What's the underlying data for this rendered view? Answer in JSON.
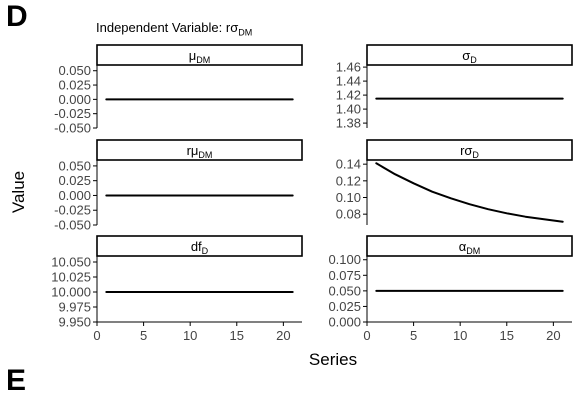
{
  "figure": {
    "panel_label": "D",
    "header": {
      "text": "Independent Variable: rσ",
      "sub": "DM"
    },
    "next_panel_label": "E",
    "ylabel": "Value",
    "xlabel": "Series"
  },
  "chart_data": [
    {
      "type": "line",
      "facet": "μ",
      "facet_sub": "DM",
      "x": [
        1,
        21
      ],
      "y": [
        0.0,
        0.0
      ],
      "ylim": [
        -0.05,
        0.06
      ],
      "yticks": [
        "0.050",
        "0.025",
        "0.000",
        "-0.025",
        "-0.050"
      ],
      "ytick_values": [
        0.05,
        0.025,
        0.0,
        -0.025,
        -0.05
      ]
    },
    {
      "type": "line",
      "facet": "σ",
      "facet_sub": "D",
      "x": [
        1,
        21
      ],
      "y": [
        1.415,
        1.415
      ],
      "ylim": [
        1.373,
        1.463
      ],
      "yticks": [
        "1.46",
        "1.44",
        "1.42",
        "1.40",
        "1.38"
      ],
      "ytick_values": [
        1.46,
        1.44,
        1.42,
        1.4,
        1.38
      ]
    },
    {
      "type": "line",
      "facet": "rμ",
      "facet_sub": "DM",
      "x": [
        1,
        21
      ],
      "y": [
        0.0,
        0.0
      ],
      "ylim": [
        -0.05,
        0.06
      ],
      "yticks": [
        "0.050",
        "0.025",
        "0.000",
        "-0.025",
        "-0.050"
      ],
      "ytick_values": [
        0.05,
        0.025,
        0.0,
        -0.025,
        -0.05
      ]
    },
    {
      "type": "line",
      "facet": "rσ",
      "facet_sub": "D",
      "x": [
        1,
        3,
        5,
        7,
        9,
        11,
        13,
        15,
        17,
        19,
        21
      ],
      "y": [
        0.141,
        0.128,
        0.117,
        0.107,
        0.099,
        0.092,
        0.086,
        0.081,
        0.077,
        0.074,
        0.071
      ],
      "ylim": [
        0.067,
        0.145
      ],
      "yticks": [
        "0.14",
        "0.12",
        "0.10",
        "0.08"
      ],
      "ytick_values": [
        0.14,
        0.12,
        0.1,
        0.08
      ]
    },
    {
      "type": "line",
      "facet": "df",
      "facet_sub": "D",
      "x": [
        1,
        21
      ],
      "y": [
        10.0,
        10.0
      ],
      "ylim": [
        9.95,
        10.06
      ],
      "yticks": [
        "10.050",
        "10.025",
        "10.000",
        "9.975",
        "9.950"
      ],
      "ytick_values": [
        10.05,
        10.025,
        10.0,
        9.975,
        9.95
      ]
    },
    {
      "type": "line",
      "facet": "α",
      "facet_sub": "DM",
      "x": [
        1,
        21
      ],
      "y": [
        0.05,
        0.05
      ],
      "ylim": [
        0.0,
        0.106
      ],
      "yticks": [
        "0.100",
        "0.075",
        "0.050",
        "0.025",
        "0.000"
      ],
      "ytick_values": [
        0.1,
        0.075,
        0.05,
        0.025,
        0.0
      ]
    }
  ],
  "x_axis": {
    "ticks": [
      "0",
      "5",
      "10",
      "15",
      "20"
    ],
    "tick_values": [
      0,
      5,
      10,
      15,
      20
    ],
    "xlim": [
      0,
      22
    ]
  }
}
